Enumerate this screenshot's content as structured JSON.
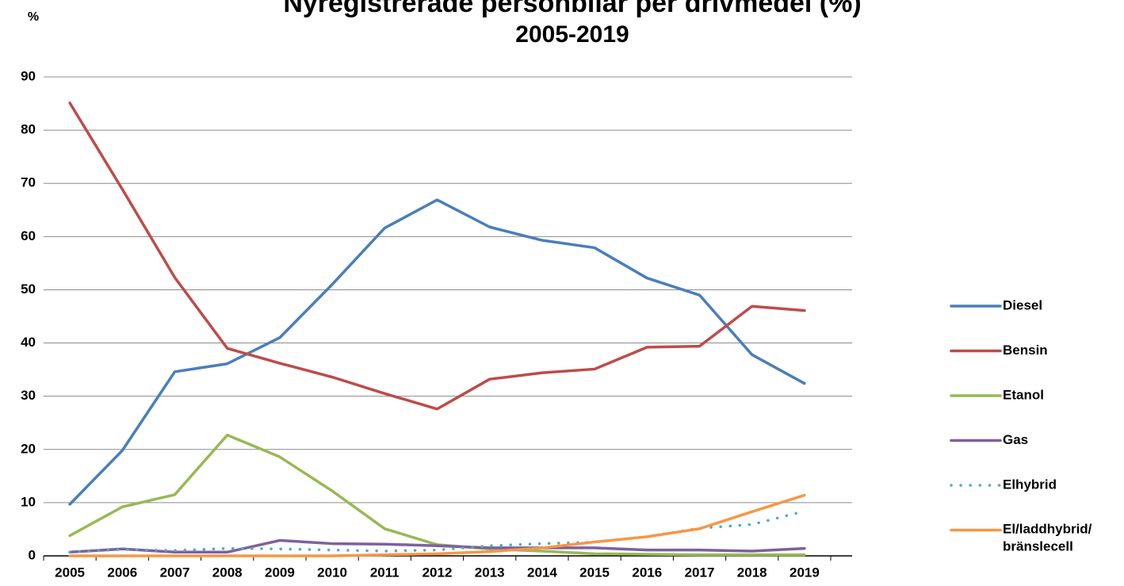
{
  "chart_data": {
    "type": "line",
    "title": "Nyregistrerade personbilar per drivmedel (%)",
    "subtitle": "2005-2019",
    "y_label": "%",
    "categories": [
      "2005",
      "2006",
      "2007",
      "2008",
      "2009",
      "2010",
      "2011",
      "2012",
      "2013",
      "2014",
      "2015",
      "2016",
      "2017",
      "2018",
      "2019"
    ],
    "series": [
      {
        "name": "Diesel",
        "color": "#4a7ebb",
        "style": "solid",
        "values": [
          9.7,
          19.8,
          34.6,
          36.1,
          41.0,
          51.0,
          61.6,
          66.9,
          61.8,
          59.3,
          57.9,
          52.2,
          49.0,
          37.8,
          32.4
        ]
      },
      {
        "name": "Bensin",
        "color": "#be4b48",
        "style": "solid",
        "values": [
          85.1,
          68.9,
          52.3,
          39.0,
          36.2,
          33.6,
          30.5,
          27.6,
          33.2,
          34.4,
          35.1,
          39.2,
          39.4,
          46.9,
          46.1
        ]
      },
      {
        "name": "Etanol",
        "color": "#98b954",
        "style": "solid",
        "values": [
          3.8,
          9.2,
          11.5,
          22.7,
          18.6,
          12.2,
          5.1,
          2.1,
          1.3,
          0.9,
          0.4,
          0.3,
          0.2,
          0.2,
          0.2
        ]
      },
      {
        "name": "Gas",
        "color": "#7d60a0",
        "style": "solid",
        "values": [
          0.7,
          1.3,
          0.7,
          0.7,
          2.9,
          2.3,
          2.2,
          1.9,
          1.5,
          1.5,
          1.5,
          1.1,
          1.1,
          0.9,
          1.4
        ]
      },
      {
        "name": "Elhybrid",
        "color": "#4bacc6",
        "style": "dotted",
        "values": [
          0.7,
          1.2,
          1.0,
          1.4,
          1.3,
          1.1,
          0.9,
          1.1,
          1.9,
          2.3,
          2.6,
          3.6,
          5.2,
          5.9,
          8.4
        ]
      },
      {
        "name": "El/laddhybrid/\nbränslecell",
        "color": "#f79646",
        "style": "solid",
        "values": [
          0,
          0,
          0,
          0,
          0,
          0,
          0.2,
          0.4,
          0.8,
          1.5,
          2.6,
          3.6,
          5.1,
          8.3,
          11.4
        ]
      }
    ],
    "ylim": [
      0,
      90
    ],
    "yticks": [
      0,
      10,
      20,
      30,
      40,
      50,
      60,
      70,
      80,
      90
    ],
    "grid": true,
    "legend": "right"
  }
}
